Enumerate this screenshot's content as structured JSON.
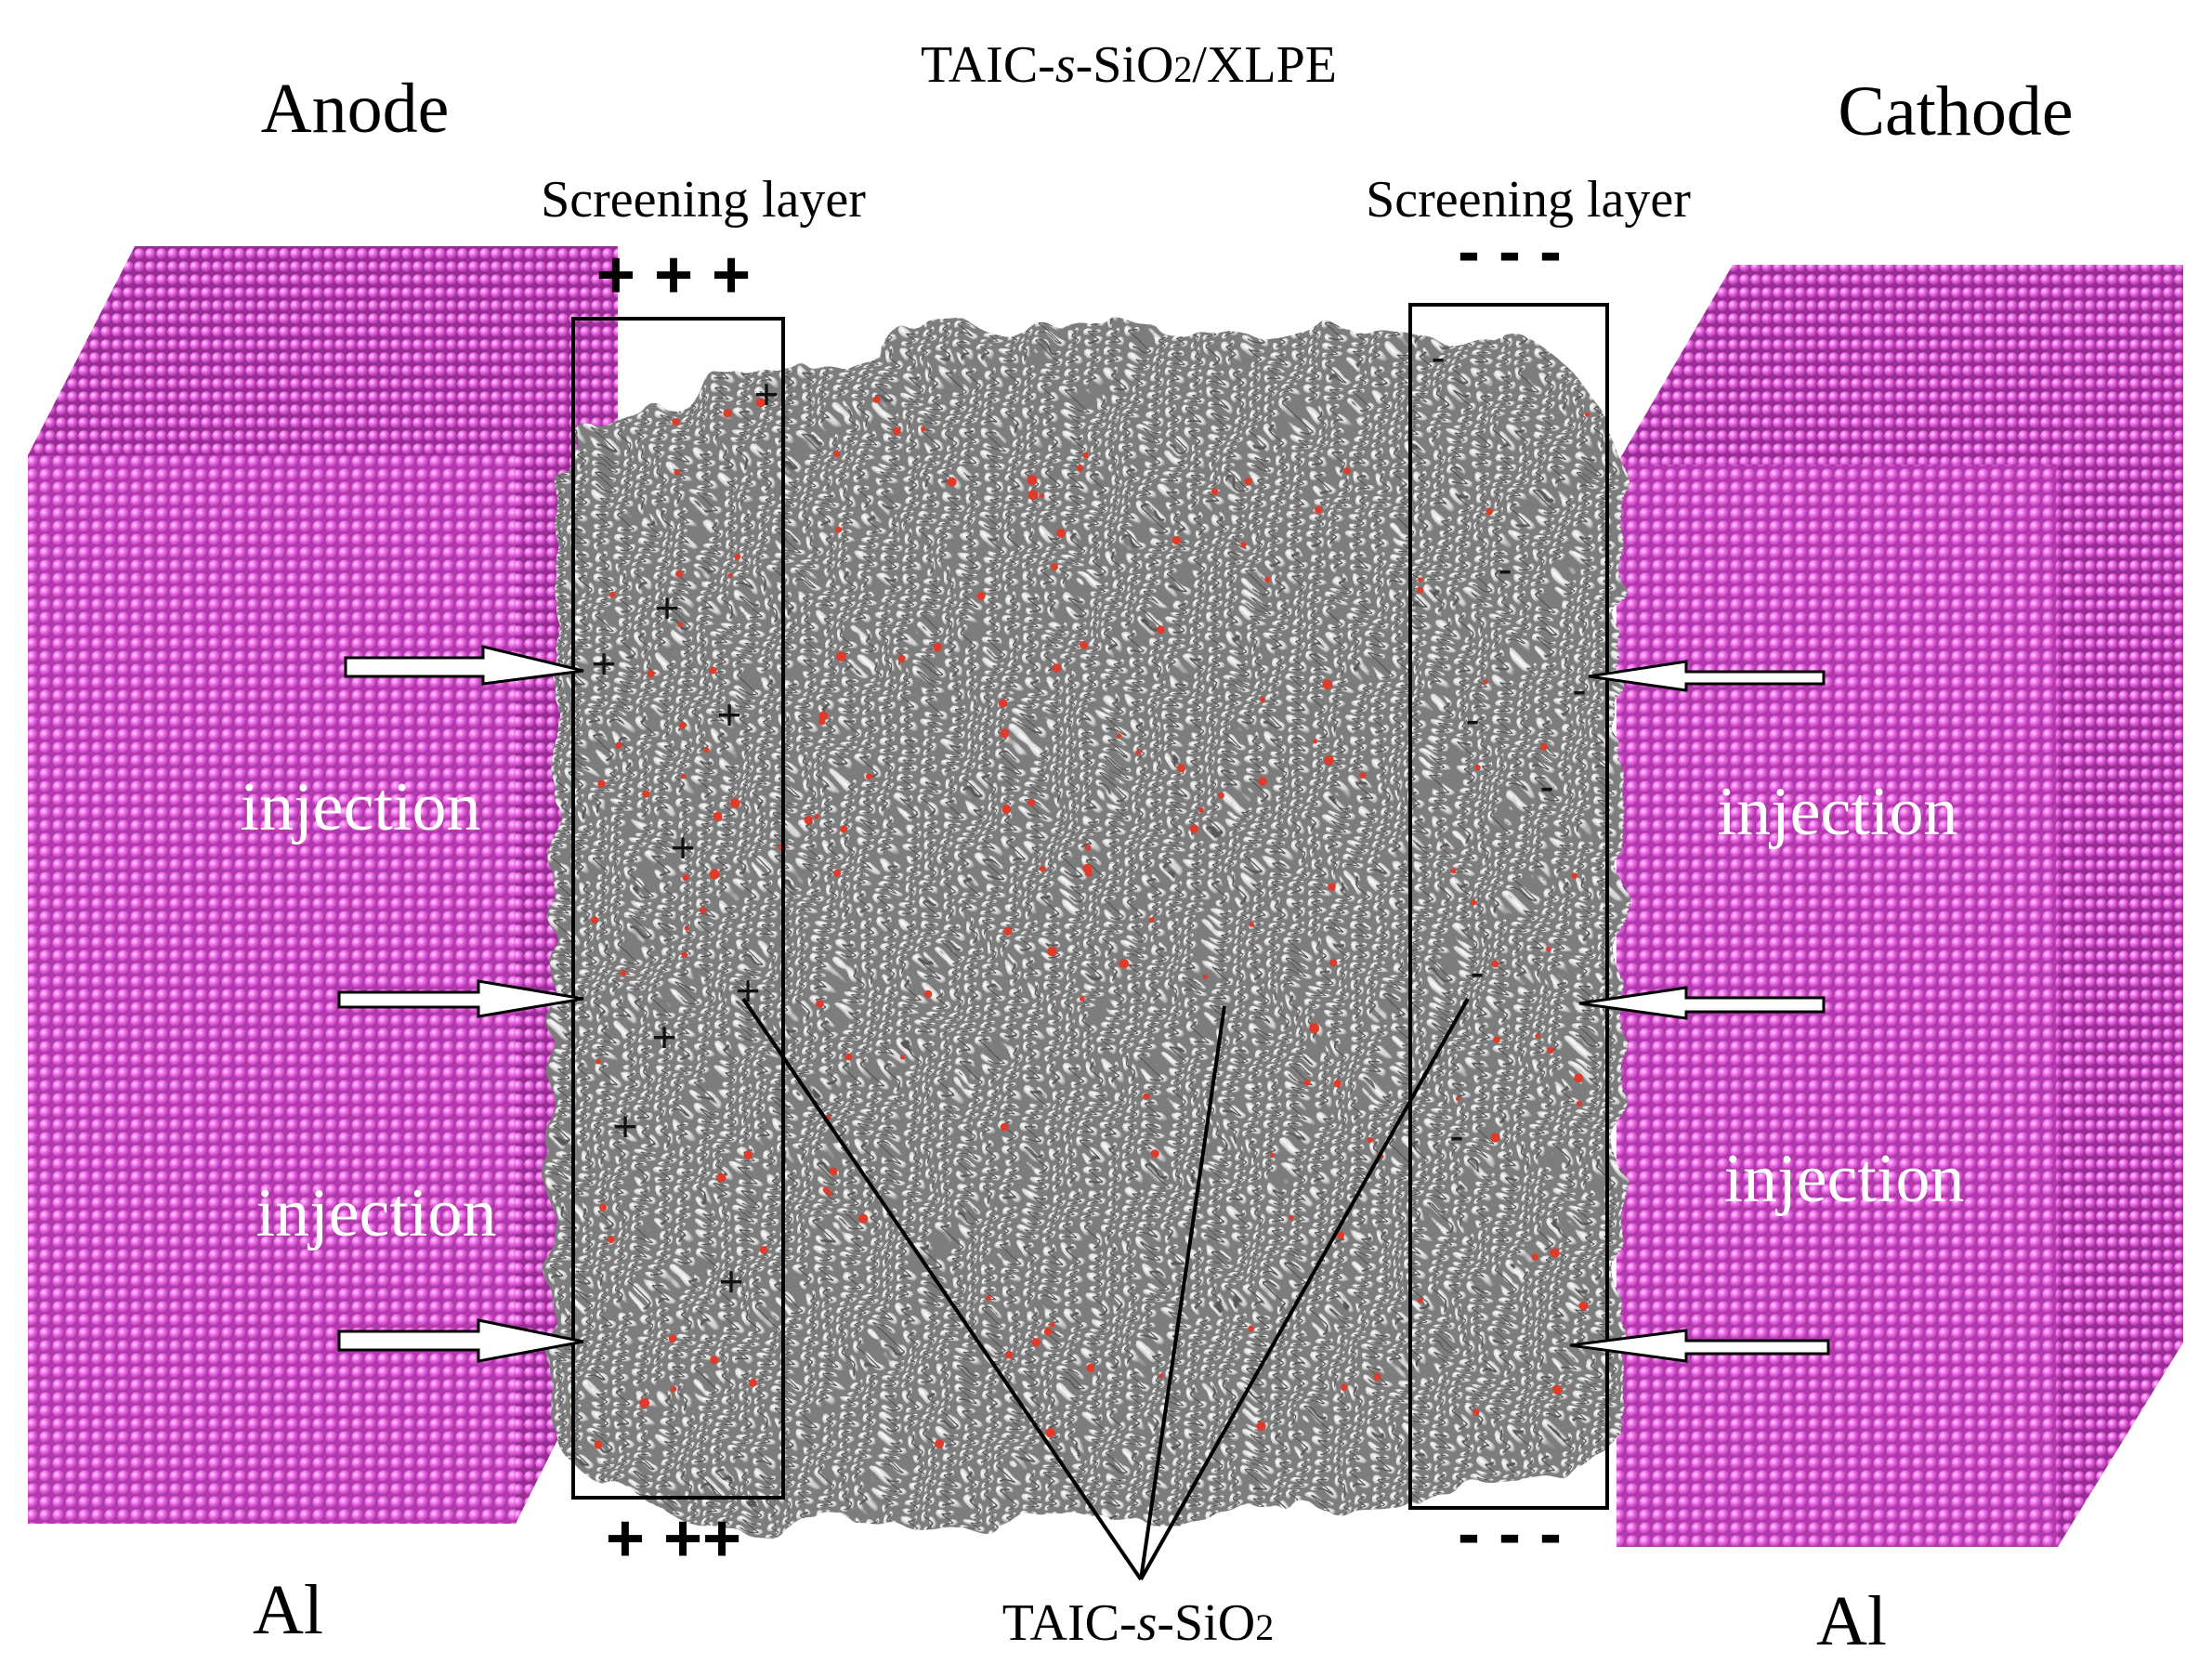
{
  "title_parts": {
    "a": "TAIC-",
    "b": "s",
    "c": "-SiO",
    "d": "2",
    "e": "/XLPE"
  },
  "anode_label": "Anode",
  "cathode_label": "Cathode",
  "screening_left": "Screening layer",
  "screening_right": "Screening layer",
  "al_left": "Al",
  "al_right": "Al",
  "injection": [
    "injection",
    "injection",
    "injection",
    "injection"
  ],
  "bottom_label_parts": {
    "a": "TAIC-",
    "b": "s",
    "c": "-SiO",
    "d": "2"
  },
  "positive_top": "+ + +",
  "positive_bottom": "+ ++",
  "negative_top": "- - -",
  "negative_bottom": "- - -",
  "plus": "+",
  "minus": "-",
  "colors": {
    "electrode": "#e85ee0",
    "electrode_side": "#c44ac0",
    "polymer": "#8a8a8a",
    "oxygen": "#e03a2a"
  }
}
